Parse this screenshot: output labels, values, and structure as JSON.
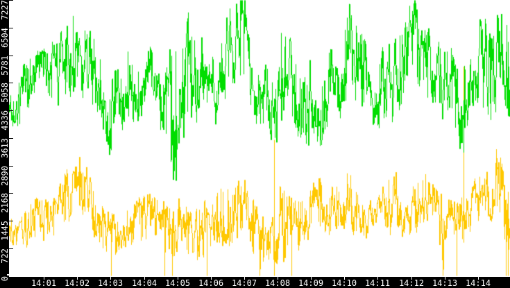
{
  "chart_data": {
    "type": "line",
    "title": "",
    "grid": false,
    "legend": "none",
    "colors": {
      "background": "#ffffff",
      "axis_bar": "#000000",
      "axis_label": "#ffffff",
      "y_tick": "#000000",
      "x_tick": "#ffffff"
    },
    "y_axis": {
      "min": 0,
      "max": 7227,
      "ticks": [
        0,
        722,
        1445,
        2168,
        2890,
        3613,
        4336,
        5058,
        5781,
        6504,
        7227
      ],
      "tick_labels": [
        "0",
        "722",
        "1445",
        "2168",
        "2890",
        "3613",
        "4336",
        "5058",
        "5781",
        "6504",
        "7227"
      ]
    },
    "x_axis": {
      "start_time": "14:00",
      "end_time": "14:15",
      "tick_labels": [
        "14:01",
        "14:02",
        "14:03",
        "14:04",
        "14:05",
        "14:06",
        "14:07",
        "14:08",
        "14:09",
        "14:10",
        "14:11",
        "14:12",
        "14:13",
        "14:14"
      ],
      "tick_interval_minutes": 1
    },
    "series": [
      {
        "name": "series-green",
        "color": "#00dd00",
        "style": "noisy-line",
        "envelope": [
          [
            -0.05,
            3850,
            4700
          ],
          [
            0.3,
            4050,
            5400
          ],
          [
            0.7,
            4300,
            5700
          ],
          [
            1.0,
            4400,
            5900
          ],
          [
            1.4,
            4600,
            6200
          ],
          [
            1.8,
            4900,
            7000
          ],
          [
            2.1,
            4700,
            6600
          ],
          [
            2.4,
            4500,
            6200
          ],
          [
            2.7,
            4200,
            5700
          ],
          [
            3.0,
            3100,
            5100
          ],
          [
            3.2,
            3750,
            5600
          ],
          [
            3.5,
            4400,
            6150
          ],
          [
            3.8,
            3850,
            5600
          ],
          [
            4.05,
            4800,
            6680
          ],
          [
            4.3,
            3700,
            5400
          ],
          [
            4.6,
            3500,
            5250
          ],
          [
            4.9,
            2700,
            6200
          ],
          [
            5.2,
            4000,
            6700
          ],
          [
            5.5,
            4150,
            6900
          ],
          [
            5.9,
            3650,
            5400
          ],
          [
            6.2,
            4300,
            5800
          ],
          [
            6.5,
            5000,
            6900
          ],
          [
            6.8,
            5400,
            7210
          ],
          [
            7.0,
            5000,
            7150
          ],
          [
            7.2,
            4400,
            6000
          ],
          [
            7.5,
            3900,
            5300
          ],
          [
            7.8,
            3700,
            5600
          ],
          [
            8.0,
            3400,
            6650
          ],
          [
            8.2,
            4700,
            6550
          ],
          [
            8.5,
            4000,
            5800
          ],
          [
            8.8,
            3550,
            5100
          ],
          [
            9.0,
            3700,
            6250
          ],
          [
            9.3,
            3400,
            5300
          ],
          [
            9.6,
            4200,
            6000
          ],
          [
            9.9,
            4300,
            6600
          ],
          [
            10.2,
            4500,
            7190
          ],
          [
            10.5,
            4300,
            6700
          ],
          [
            10.8,
            3900,
            4950
          ],
          [
            11.1,
            4100,
            6000
          ],
          [
            11.4,
            4200,
            6150
          ],
          [
            11.7,
            4500,
            6500
          ],
          [
            12.0,
            4800,
            7200
          ],
          [
            12.2,
            5000,
            7000
          ],
          [
            12.5,
            4600,
            6400
          ],
          [
            12.8,
            4350,
            6200
          ],
          [
            13.1,
            4300,
            6100
          ],
          [
            13.4,
            3500,
            5500
          ],
          [
            13.6,
            3650,
            5600
          ],
          [
            13.8,
            4400,
            6300
          ],
          [
            14.1,
            4600,
            6700
          ],
          [
            14.35,
            3100,
            6300
          ],
          [
            14.6,
            4400,
            6900
          ],
          [
            14.97,
            4100,
            6800
          ]
        ],
        "spikes": [
          [
            13.56,
            3230,
            4600
          ],
          [
            14.955,
            1180,
            6700
          ]
        ]
      },
      {
        "name": "series-yellow",
        "color": "#ffc800",
        "style": "noisy-line",
        "envelope": [
          [
            -0.05,
            900,
            1650
          ],
          [
            0.3,
            650,
            1550
          ],
          [
            0.6,
            900,
            1900
          ],
          [
            0.9,
            1100,
            2150
          ],
          [
            1.2,
            950,
            1950
          ],
          [
            1.5,
            1250,
            2350
          ],
          [
            1.8,
            1500,
            2900
          ],
          [
            2.1,
            1500,
            3000
          ],
          [
            2.4,
            1300,
            2500
          ],
          [
            2.7,
            800,
            1900
          ],
          [
            3.0,
            200,
            1500
          ],
          [
            3.3,
            700,
            1750
          ],
          [
            3.6,
            800,
            1900
          ],
          [
            3.9,
            900,
            2000
          ],
          [
            4.2,
            1000,
            2150
          ],
          [
            4.5,
            700,
            1900
          ],
          [
            4.8,
            250,
            1800
          ],
          [
            5.1,
            500,
            1850
          ],
          [
            5.4,
            400,
            1700
          ],
          [
            5.7,
            400,
            1900
          ],
          [
            6.0,
            700,
            2100
          ],
          [
            6.3,
            900,
            2400
          ],
          [
            6.6,
            800,
            2300
          ],
          [
            6.9,
            800,
            2400
          ],
          [
            7.2,
            700,
            2100
          ],
          [
            7.45,
            100,
            1500
          ],
          [
            7.7,
            400,
            1450
          ],
          [
            7.95,
            350,
            1600
          ],
          [
            8.1,
            700,
            2690
          ],
          [
            8.4,
            200,
            1800
          ],
          [
            8.7,
            900,
            2100
          ],
          [
            9.0,
            1000,
            2320
          ],
          [
            9.3,
            1200,
            2450
          ],
          [
            9.6,
            1100,
            2300
          ],
          [
            9.9,
            1300,
            2500
          ],
          [
            10.05,
            1400,
            3100
          ],
          [
            10.3,
            1100,
            2250
          ],
          [
            10.6,
            1000,
            2000
          ],
          [
            10.9,
            800,
            1800
          ],
          [
            11.2,
            1100,
            2400
          ],
          [
            11.5,
            1300,
            2760
          ],
          [
            11.8,
            1100,
            2250
          ],
          [
            12.1,
            1200,
            2400
          ],
          [
            12.4,
            1500,
            2700
          ],
          [
            12.7,
            1300,
            2400
          ],
          [
            12.95,
            300,
            1800
          ],
          [
            13.2,
            800,
            1900
          ],
          [
            13.45,
            700,
            1900
          ],
          [
            13.7,
            1250,
            2300
          ],
          [
            14.0,
            1500,
            2650
          ],
          [
            14.3,
            1400,
            2600
          ],
          [
            14.6,
            1600,
            3320
          ],
          [
            14.85,
            500,
            2500
          ],
          [
            14.97,
            450,
            800
          ]
        ],
        "spikes": [
          [
            3.02,
            0,
            1400
          ],
          [
            4.62,
            0,
            1500
          ],
          [
            4.85,
            0,
            1500
          ],
          [
            5.87,
            0,
            1700
          ],
          [
            7.45,
            0,
            1300
          ],
          [
            7.9,
            0,
            3560
          ],
          [
            8.42,
            0,
            1600
          ],
          [
            12.95,
            0,
            1500
          ],
          [
            13.35,
            0,
            1600
          ],
          [
            13.56,
            870,
            5480
          ],
          [
            14.83,
            0,
            2000
          ],
          [
            14.9,
            0,
            2200
          ]
        ]
      }
    ]
  }
}
